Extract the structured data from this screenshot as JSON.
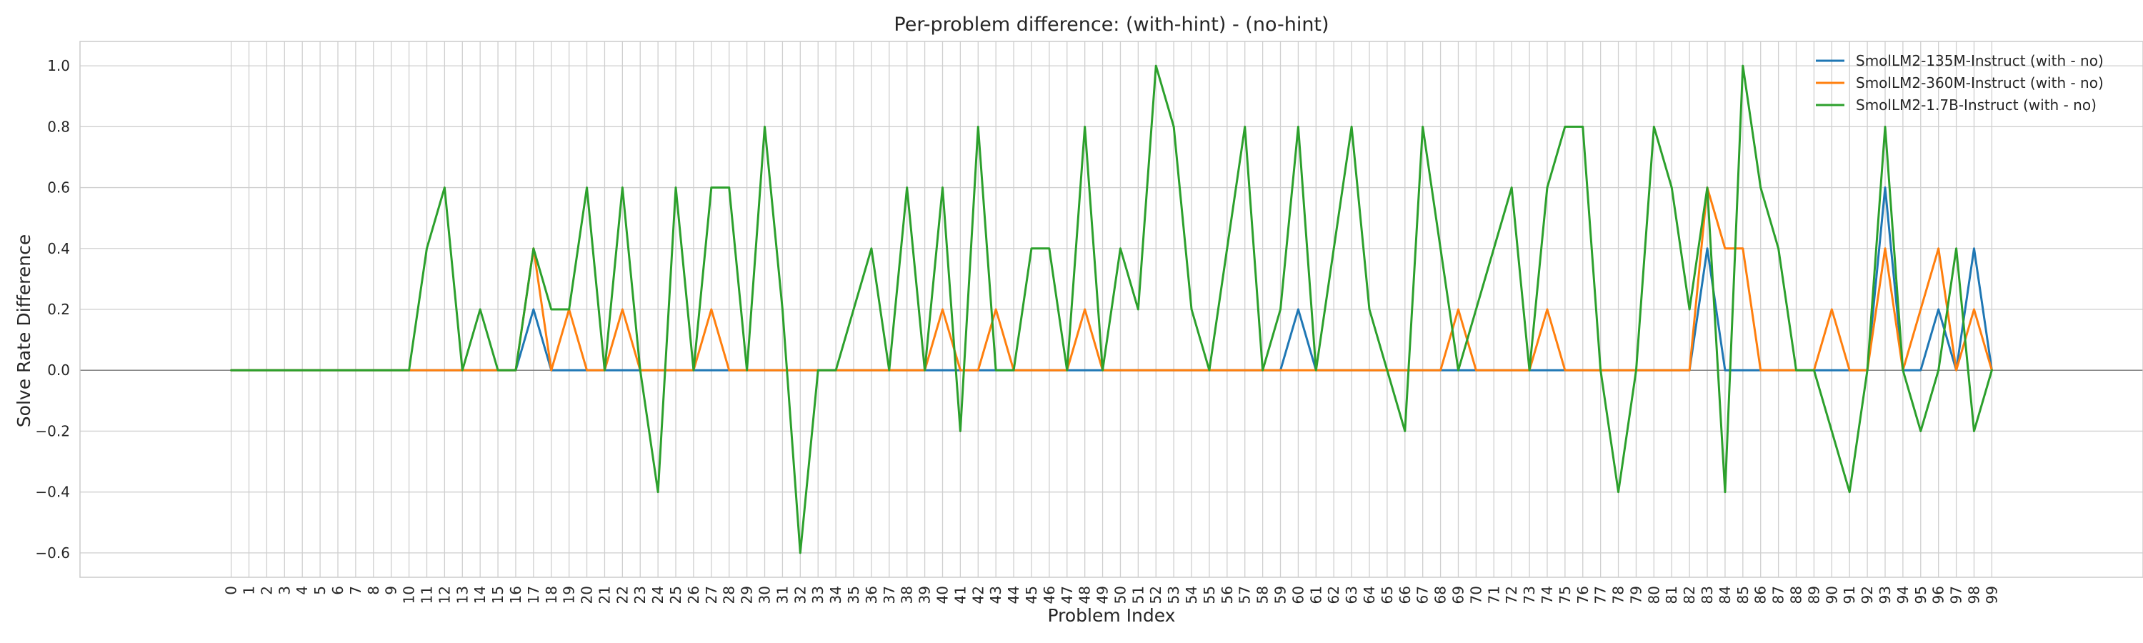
{
  "chart_data": {
    "type": "line",
    "title": "Per-problem difference: (with-hint) - (no-hint)",
    "xlabel": "Problem Index",
    "ylabel": "Solve Rate Difference",
    "xlim": [
      -8.5,
      107.5
    ],
    "ylim": [
      -0.68,
      1.08
    ],
    "yticks": [
      -0.6,
      -0.4,
      -0.2,
      0.0,
      0.2,
      0.4,
      0.6,
      0.8,
      1.0
    ],
    "ytick_labels": [
      "−0.6",
      "−0.4",
      "−0.2",
      "0.0",
      "0.2",
      "0.4",
      "0.6",
      "0.8",
      "1.0"
    ],
    "x": [
      0,
      1,
      2,
      3,
      4,
      5,
      6,
      7,
      8,
      9,
      10,
      11,
      12,
      13,
      14,
      15,
      16,
      17,
      18,
      19,
      20,
      21,
      22,
      23,
      24,
      25,
      26,
      27,
      28,
      29,
      30,
      31,
      32,
      33,
      34,
      35,
      36,
      37,
      38,
      39,
      40,
      41,
      42,
      43,
      44,
      45,
      46,
      47,
      48,
      49,
      50,
      51,
      52,
      53,
      54,
      55,
      56,
      57,
      58,
      59,
      60,
      61,
      62,
      63,
      64,
      65,
      66,
      67,
      68,
      69,
      70,
      71,
      72,
      73,
      74,
      75,
      76,
      77,
      78,
      79,
      80,
      81,
      82,
      83,
      84,
      85,
      86,
      87,
      88,
      89,
      90,
      91,
      92,
      93,
      94,
      95,
      96,
      97,
      98,
      99
    ],
    "grid": true,
    "legend_position": "top-right",
    "zero_line_color": "#808080",
    "series": [
      {
        "name": "SmolLM2-135M-Instruct (with - no)",
        "color": "#1f77b4",
        "values": [
          0,
          0,
          0,
          0,
          0,
          0,
          0,
          0,
          0,
          0,
          0,
          0,
          0,
          0,
          0,
          0,
          0,
          0.2,
          0,
          0,
          0,
          0,
          0,
          0,
          0,
          0,
          0,
          0,
          0,
          0,
          0,
          0,
          0,
          0,
          0,
          0,
          0,
          0,
          0,
          0,
          0,
          0,
          0,
          0,
          0,
          0,
          0,
          0,
          0,
          0,
          0,
          0,
          0,
          0,
          0,
          0,
          0,
          0,
          0,
          0,
          0.2,
          0,
          0,
          0,
          0,
          0,
          0,
          0,
          0,
          0,
          0,
          0,
          0,
          0,
          0,
          0,
          0,
          0,
          0,
          0,
          0,
          0,
          0,
          0.4,
          0,
          0,
          0,
          0,
          0,
          0,
          0,
          0,
          0,
          0.6,
          0,
          0,
          0.2,
          0,
          0.4,
          0
        ]
      },
      {
        "name": "SmolLM2-360M-Instruct (with - no)",
        "color": "#ff7f0e",
        "values": [
          0,
          0,
          0,
          0,
          0,
          0,
          0,
          0,
          0,
          0,
          0,
          0,
          0,
          0,
          0,
          0,
          0,
          0.4,
          0,
          0.2,
          0,
          0,
          0.2,
          0,
          0,
          0,
          0,
          0.2,
          0,
          0,
          0,
          0,
          0,
          0,
          0,
          0,
          0,
          0,
          0,
          0,
          0.2,
          0,
          0,
          0.2,
          0,
          0,
          0,
          0,
          0.2,
          0,
          0,
          0,
          0,
          0,
          0,
          0,
          0,
          0,
          0,
          0,
          0,
          0,
          0,
          0,
          0,
          0,
          0,
          0,
          0,
          0.2,
          0,
          0,
          0,
          0,
          0.2,
          0,
          0,
          0,
          0,
          0,
          0,
          0,
          0,
          0.6,
          0.4,
          0.4,
          0,
          0,
          0,
          0,
          0.2,
          0,
          0,
          0.4,
          0,
          0.2,
          0.4,
          0,
          0.2,
          0
        ]
      },
      {
        "name": "SmolLM2-1.7B-Instruct (with - no)",
        "color": "#2ca02c",
        "values": [
          0,
          0,
          0,
          0,
          0,
          0,
          0,
          0,
          0,
          0,
          0,
          0.4,
          0.6,
          0,
          0.2,
          0,
          0,
          0.4,
          0.2,
          0.2,
          0.6,
          0,
          0.6,
          0,
          -0.4,
          0.6,
          0,
          0.6,
          0.6,
          0,
          0.8,
          0.2,
          -0.6,
          0,
          0,
          0.2,
          0.4,
          0,
          0.6,
          0,
          0.6,
          -0.2,
          0.8,
          0,
          0,
          0.4,
          0.4,
          0,
          0.8,
          0,
          0.4,
          0.2,
          1.0,
          0.8,
          0.2,
          0,
          0.4,
          0.8,
          0,
          0.2,
          0.8,
          0,
          0.4,
          0.8,
          0.2,
          0,
          -0.2,
          0.8,
          0.4,
          0,
          0.2,
          0.4,
          0.6,
          0,
          0.6,
          0.8,
          0.8,
          0,
          -0.4,
          0,
          0.8,
          0.6,
          0.2,
          0.6,
          -0.4,
          1.0,
          0.6,
          0.4,
          0,
          0,
          -0.2,
          -0.4,
          0,
          0.8,
          0,
          -0.2,
          0,
          0.4,
          -0.2,
          0
        ]
      }
    ]
  }
}
